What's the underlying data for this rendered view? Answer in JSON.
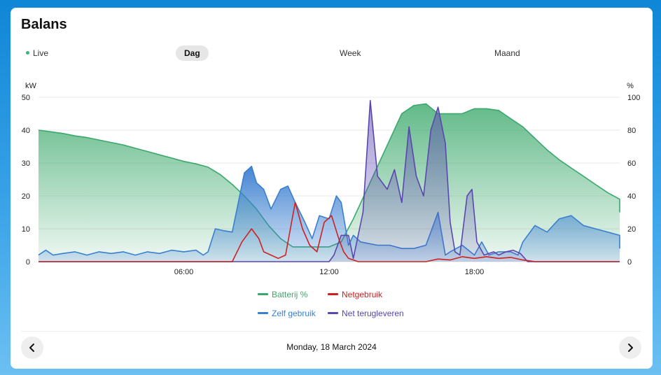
{
  "card": {
    "title": "Balans"
  },
  "tabs": [
    {
      "label": "Live",
      "active": false
    },
    {
      "label": "Dag",
      "active": true
    },
    {
      "label": "Week",
      "active": false
    },
    {
      "label": "Maand",
      "active": false
    }
  ],
  "date_label": "Monday, 18 March 2024",
  "icons": {
    "prev": "chevron-left-icon",
    "next": "chevron-right-icon",
    "live": "live-dot-icon"
  },
  "chart_data": {
    "type": "area",
    "title": "",
    "y_left_unit": "kW",
    "y_right_unit": "%",
    "y_left_range": [
      0,
      50
    ],
    "y_right_range": [
      0,
      100
    ],
    "y_left_ticks": [
      "0",
      "10",
      "20",
      "30",
      "40",
      "50"
    ],
    "y_right_ticks": [
      "0",
      "20",
      "40",
      "60",
      "80",
      "100"
    ],
    "x_range_hours": [
      0,
      24
    ],
    "x_ticks": [
      {
        "hour": 6,
        "label": "06:00"
      },
      {
        "hour": 12,
        "label": "12:00"
      },
      {
        "hour": 18,
        "label": "18:00"
      }
    ],
    "grid": true,
    "legend_position": "bottom",
    "series": [
      {
        "name": "Batterij %",
        "axis": "right",
        "color": "#3aa86b",
        "filled": true,
        "points": [
          [
            0,
            80
          ],
          [
            0.5,
            79
          ],
          [
            1,
            78
          ],
          [
            1.5,
            76.5
          ],
          [
            2,
            75.5
          ],
          [
            2.5,
            74
          ],
          [
            3,
            72.5
          ],
          [
            3.5,
            71
          ],
          [
            4,
            69
          ],
          [
            4.5,
            67
          ],
          [
            5,
            65
          ],
          [
            5.5,
            63
          ],
          [
            6,
            61
          ],
          [
            6.5,
            59.5
          ],
          [
            7,
            57.5
          ],
          [
            7.5,
            53
          ],
          [
            8,
            47
          ],
          [
            8.5,
            40
          ],
          [
            9,
            32
          ],
          [
            9.5,
            22
          ],
          [
            10,
            14
          ],
          [
            10.5,
            9
          ],
          [
            11,
            9
          ],
          [
            11.5,
            9
          ],
          [
            12,
            9
          ],
          [
            12.5,
            12
          ],
          [
            13,
            26
          ],
          [
            13.5,
            42
          ],
          [
            14,
            58
          ],
          [
            14.5,
            74
          ],
          [
            15,
            90
          ],
          [
            15.5,
            95
          ],
          [
            16,
            96
          ],
          [
            16.5,
            90
          ],
          [
            17,
            90
          ],
          [
            17.5,
            90
          ],
          [
            18,
            93
          ],
          [
            18.5,
            93
          ],
          [
            19,
            92
          ],
          [
            19.5,
            87
          ],
          [
            20,
            82
          ],
          [
            20.5,
            75
          ],
          [
            21,
            68
          ],
          [
            21.5,
            62
          ],
          [
            22,
            57
          ],
          [
            22.5,
            52
          ],
          [
            23,
            47
          ],
          [
            23.5,
            42
          ],
          [
            24,
            38
          ],
          [
            24.5,
            36
          ],
          [
            25,
            34
          ],
          [
            25.5,
            32
          ],
          [
            26,
            30
          ]
        ]
      },
      {
        "name": "Zelf gebruik",
        "axis": "left",
        "color": "#3a7fd0",
        "filled": true,
        "points": [
          [
            0,
            2
          ],
          [
            0.3,
            3.5
          ],
          [
            0.6,
            2
          ],
          [
            1,
            2.5
          ],
          [
            1.5,
            3
          ],
          [
            2,
            2
          ],
          [
            2.5,
            3
          ],
          [
            3,
            2.5
          ],
          [
            3.5,
            3
          ],
          [
            4,
            2
          ],
          [
            4.5,
            3
          ],
          [
            5,
            2.5
          ],
          [
            5.5,
            3.5
          ],
          [
            6,
            3
          ],
          [
            6.5,
            3.5
          ],
          [
            6.8,
            2
          ],
          [
            7,
            3
          ],
          [
            7.3,
            10
          ],
          [
            7.6,
            9.5
          ],
          [
            8,
            9
          ],
          [
            8.5,
            27
          ],
          [
            8.8,
            29
          ],
          [
            9,
            24
          ],
          [
            9.3,
            22
          ],
          [
            9.6,
            16
          ],
          [
            10,
            22
          ],
          [
            10.3,
            23
          ],
          [
            10.6,
            18
          ],
          [
            11,
            12
          ],
          [
            11.3,
            7
          ],
          [
            11.6,
            14
          ],
          [
            12,
            13
          ],
          [
            12.3,
            20
          ],
          [
            12.5,
            18
          ],
          [
            12.8,
            5
          ],
          [
            13,
            8
          ],
          [
            13.3,
            6
          ],
          [
            14,
            5
          ],
          [
            14.5,
            5
          ],
          [
            15,
            4
          ],
          [
            15.5,
            4
          ],
          [
            16,
            5
          ],
          [
            16.5,
            15
          ],
          [
            16.8,
            2
          ],
          [
            17,
            3
          ],
          [
            17.5,
            5
          ],
          [
            18,
            2
          ],
          [
            18.3,
            6
          ],
          [
            18.6,
            2
          ],
          [
            19,
            3
          ],
          [
            19.5,
            3
          ],
          [
            19.8,
            2
          ],
          [
            20,
            6
          ],
          [
            20.5,
            11
          ],
          [
            21,
            9
          ],
          [
            21.5,
            13
          ],
          [
            22,
            14
          ],
          [
            22.5,
            11
          ],
          [
            23,
            10
          ],
          [
            23.5,
            9
          ],
          [
            24,
            8
          ],
          [
            24.5,
            7
          ],
          [
            25,
            6
          ],
          [
            25.5,
            5
          ],
          [
            26,
            4
          ]
        ]
      },
      {
        "name": "Net terugleveren",
        "axis": "left",
        "color": "#5b45b0",
        "filled": true,
        "points": [
          [
            0,
            0
          ],
          [
            7,
            0
          ],
          [
            9,
            0
          ],
          [
            10,
            0
          ],
          [
            11,
            0
          ],
          [
            12,
            0
          ],
          [
            12.2,
            2
          ],
          [
            12.5,
            8
          ],
          [
            12.8,
            8
          ],
          [
            13,
            1
          ],
          [
            13.4,
            15
          ],
          [
            13.7,
            49
          ],
          [
            14,
            26
          ],
          [
            14.4,
            22
          ],
          [
            14.7,
            28
          ],
          [
            15,
            18
          ],
          [
            15.3,
            41
          ],
          [
            15.6,
            26
          ],
          [
            15.9,
            20
          ],
          [
            16.2,
            40
          ],
          [
            16.5,
            47
          ],
          [
            16.8,
            36
          ],
          [
            17,
            12
          ],
          [
            17.2,
            3
          ],
          [
            17.4,
            2
          ],
          [
            17.7,
            20
          ],
          [
            17.9,
            22
          ],
          [
            18.1,
            6
          ],
          [
            18.4,
            2
          ],
          [
            18.8,
            3
          ],
          [
            19,
            2
          ],
          [
            19.3,
            3
          ],
          [
            19.6,
            3.5
          ],
          [
            19.9,
            2.5
          ],
          [
            20.2,
            0
          ],
          [
            21,
            0
          ],
          [
            22,
            0
          ],
          [
            26,
            0
          ]
        ]
      },
      {
        "name": "Netgebruik",
        "axis": "left",
        "color": "#cc2222",
        "filled": false,
        "points": [
          [
            0,
            0
          ],
          [
            7,
            0
          ],
          [
            8,
            0
          ],
          [
            8.4,
            6
          ],
          [
            8.8,
            10
          ],
          [
            9.1,
            7
          ],
          [
            9.3,
            3
          ],
          [
            9.6,
            2
          ],
          [
            9.9,
            1
          ],
          [
            10.2,
            2
          ],
          [
            10.6,
            18
          ],
          [
            10.9,
            10
          ],
          [
            11.2,
            5
          ],
          [
            11.5,
            3
          ],
          [
            11.8,
            12
          ],
          [
            12.1,
            14
          ],
          [
            12.4,
            7
          ],
          [
            12.6,
            3
          ],
          [
            12.8,
            1
          ],
          [
            13.2,
            0
          ],
          [
            14,
            0
          ],
          [
            15,
            0
          ],
          [
            16,
            0
          ],
          [
            16.5,
            0.8
          ],
          [
            17,
            0.5
          ],
          [
            17.5,
            1.5
          ],
          [
            18,
            1
          ],
          [
            18.5,
            1.5
          ],
          [
            19,
            1
          ],
          [
            19.5,
            1.3
          ],
          [
            20,
            0.5
          ],
          [
            20.5,
            0
          ],
          [
            26,
            0
          ]
        ]
      }
    ]
  }
}
